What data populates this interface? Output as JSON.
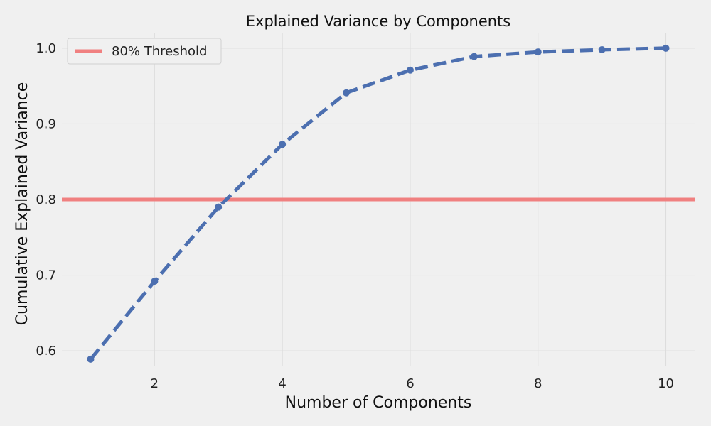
{
  "chart_data": {
    "type": "line",
    "title": "Explained Variance by Components",
    "xlabel": "Number of Components",
    "ylabel": "Cumulative Explained Variance",
    "x": [
      1,
      2,
      3,
      4,
      5,
      6,
      7,
      8,
      9,
      10
    ],
    "series": [
      {
        "values": [
          0.589,
          0.692,
          0.79,
          0.873,
          0.941,
          0.971,
          0.989,
          0.995,
          0.998,
          1.0
        ],
        "color": "#4c6fb0",
        "line_style": "dashed",
        "marker": "circle"
      }
    ],
    "threshold": {
      "label": "80% Threshold",
      "value": 0.8,
      "color": "#f08080"
    },
    "xticks": [
      2,
      4,
      6,
      8,
      10
    ],
    "yticks": [
      0.6,
      0.7,
      0.8,
      0.9,
      1.0
    ],
    "ytick_labels": [
      "0.6",
      "0.7",
      "0.8",
      "0.9",
      "1.0"
    ],
    "xlim": [
      0.55,
      10.45
    ],
    "ylim": [
      0.5795,
      1.0205
    ],
    "grid": true,
    "legend_position": "top-left",
    "background": "#f0f0f0",
    "grid_color": "#dcdcdc"
  }
}
